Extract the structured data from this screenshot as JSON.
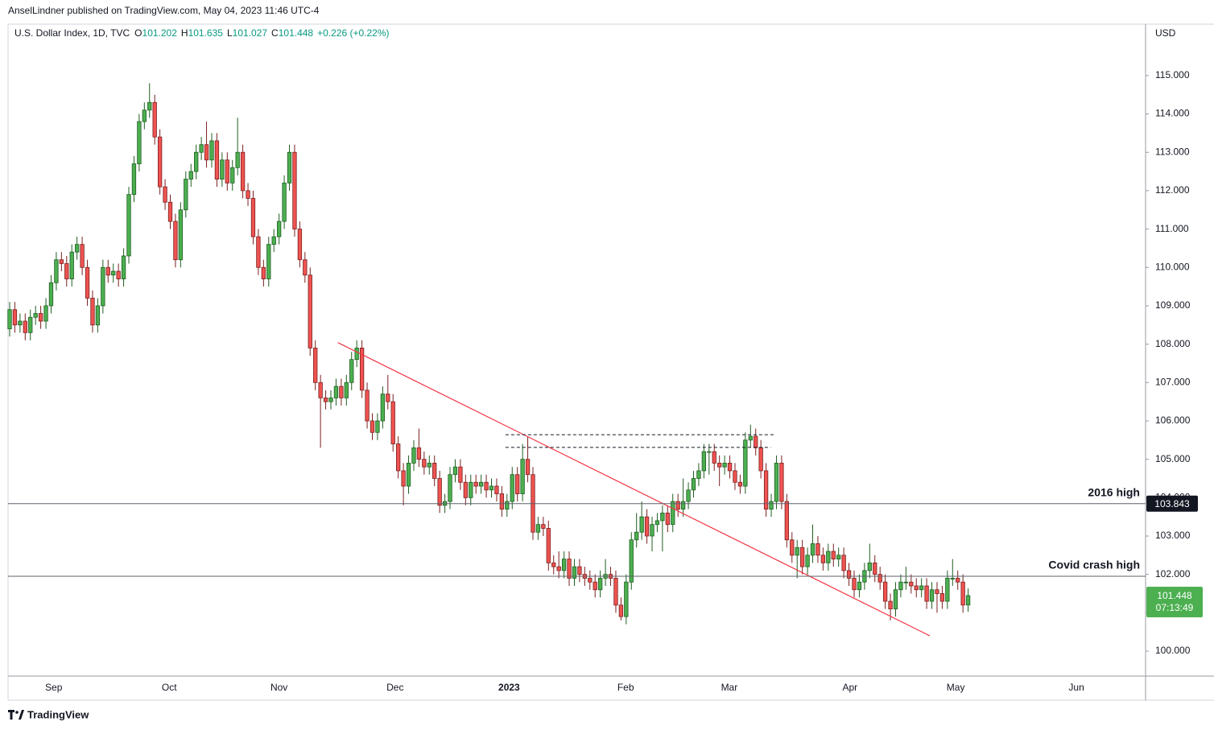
{
  "publisher": "AnselLindner published on TradingView.com, May 04, 2023 11:46 UTC-4",
  "brand": "TradingView",
  "chart_data": {
    "type": "candlestick",
    "legend": {
      "symbol": "U.S. Dollar Index, 1D, TVC",
      "fields": [
        {
          "key": "O",
          "value": "101.202"
        },
        {
          "key": "H",
          "value": "101.635"
        },
        {
          "key": "L",
          "value": "101.027"
        },
        {
          "key": "C",
          "value": "101.448"
        }
      ],
      "change": "+0.226 (+0.22%)"
    },
    "currency": "USD",
    "up_color": "#4caf50",
    "down_color": "#ef5350",
    "open": [
      108.4,
      108.9,
      108.5,
      108.6,
      108.3,
      108.7,
      108.8,
      108.6,
      109.0,
      109.6,
      110.2,
      110.1,
      109.7,
      110.4,
      110.6,
      110.0,
      109.2,
      108.5,
      109.0,
      110.0,
      109.8,
      109.9,
      109.7,
      110.3,
      111.9,
      112.7,
      113.8,
      114.1,
      114.3,
      113.4,
      112.1,
      111.7,
      111.2,
      110.2,
      111.5,
      112.3,
      112.5,
      113.0,
      113.2,
      112.8,
      113.3,
      112.3,
      112.8,
      112.2,
      112.6,
      113.0,
      112.0,
      111.8,
      110.8,
      110.0,
      109.7,
      110.6,
      110.8,
      111.2,
      112.2,
      113.0,
      111.0,
      110.2,
      109.8,
      107.9,
      107.0,
      106.6,
      106.5,
      106.6,
      106.9,
      106.6,
      107.0,
      107.6,
      107.9,
      106.8,
      106.0,
      105.7,
      106.0,
      106.7,
      106.5,
      105.4,
      104.7,
      104.3,
      104.9,
      105.3,
      105.0,
      104.8,
      104.9,
      104.5,
      103.8,
      103.9,
      104.6,
      104.8,
      104.4,
      104.0,
      104.4,
      104.3,
      104.4,
      104.2,
      104.3,
      104.1,
      103.7,
      103.9,
      104.6,
      104.1,
      105.0,
      104.6,
      103.1,
      103.3,
      103.2,
      102.3,
      102.2,
      102.1,
      102.4,
      101.9,
      102.2,
      102.0,
      101.9,
      101.8,
      101.6,
      101.9,
      102.0,
      101.9,
      101.2,
      100.9,
      101.8,
      102.9,
      103.1,
      103.5,
      103.0,
      103.3,
      103.4,
      103.6,
      103.3,
      103.9,
      103.7,
      103.9,
      104.2,
      104.5,
      104.7,
      105.2,
      105.2,
      104.9,
      104.8,
      104.9,
      104.7,
      104.4,
      104.3,
      105.5,
      105.6,
      105.3,
      104.7,
      103.7,
      103.9,
      104.9,
      103.9,
      102.9,
      102.5,
      102.7,
      102.2,
      102.5,
      102.8,
      102.5,
      102.3,
      102.6,
      102.4,
      102.5,
      102.1,
      101.9,
      101.6,
      101.8,
      102.1,
      102.3,
      102.0,
      101.8,
      101.3,
      101.1,
      101.6,
      101.8,
      101.8,
      101.7,
      101.6,
      101.7,
      101.3,
      101.6,
      101.5,
      101.3,
      101.9,
      101.9,
      101.8,
      101.202
    ],
    "high": [
      109.1,
      109.1,
      108.8,
      108.8,
      108.9,
      109.0,
      109.0,
      109.2,
      109.8,
      110.4,
      110.4,
      110.3,
      110.6,
      110.8,
      110.8,
      110.2,
      109.4,
      109.2,
      110.2,
      110.2,
      110.1,
      110.1,
      110.5,
      112.1,
      112.9,
      114.0,
      114.3,
      114.8,
      114.5,
      113.6,
      112.3,
      111.9,
      111.4,
      111.7,
      112.5,
      112.7,
      113.2,
      113.4,
      113.8,
      113.5,
      113.5,
      113.0,
      113.0,
      112.8,
      113.9,
      113.2,
      112.2,
      112.0,
      111.0,
      110.2,
      110.8,
      111.0,
      111.4,
      112.4,
      113.2,
      113.2,
      111.2,
      110.4,
      110.0,
      108.1,
      107.2,
      106.8,
      106.8,
      107.1,
      107.1,
      107.2,
      107.8,
      108.1,
      108.1,
      107.0,
      106.2,
      106.2,
      106.9,
      107.2,
      106.7,
      105.6,
      104.9,
      105.1,
      105.5,
      105.8,
      105.2,
      105.1,
      105.1,
      104.7,
      104.1,
      104.8,
      105.0,
      105.0,
      104.6,
      104.6,
      104.6,
      104.6,
      104.6,
      104.5,
      104.5,
      104.3,
      104.1,
      104.8,
      104.8,
      105.4,
      105.6,
      104.8,
      103.5,
      103.5,
      103.4,
      102.5,
      102.6,
      102.6,
      102.6,
      102.4,
      102.4,
      102.2,
      102.1,
      102.0,
      102.1,
      102.4,
      102.2,
      102.1,
      101.4,
      102.0,
      103.1,
      103.6,
      103.9,
      103.7,
      103.5,
      103.6,
      103.8,
      103.8,
      104.1,
      104.1,
      104.5,
      104.4,
      104.7,
      104.9,
      105.4,
      105.4,
      105.4,
      105.1,
      105.1,
      105.1,
      104.9,
      104.6,
      105.7,
      105.9,
      105.8,
      105.5,
      104.9,
      104.1,
      105.1,
      105.1,
      104.1,
      103.1,
      102.9,
      102.9,
      102.7,
      103.3,
      103.0,
      102.7,
      102.8,
      102.8,
      102.7,
      102.7,
      102.3,
      102.1,
      102.0,
      102.3,
      102.8,
      102.5,
      102.2,
      102.0,
      101.5,
      101.8,
      102.0,
      102.2,
      102.0,
      101.9,
      101.9,
      101.9,
      101.8,
      101.8,
      101.7,
      102.1,
      102.4,
      102.1,
      102.0,
      101.635
    ],
    "low": [
      108.2,
      108.3,
      108.3,
      108.1,
      108.1,
      108.5,
      108.4,
      108.4,
      108.8,
      109.4,
      109.9,
      109.5,
      109.5,
      110.2,
      109.8,
      109.0,
      108.3,
      108.3,
      108.8,
      109.6,
      109.6,
      109.5,
      109.5,
      110.1,
      111.7,
      112.5,
      113.6,
      113.9,
      113.2,
      111.9,
      111.5,
      111.0,
      110.0,
      110.0,
      111.3,
      112.1,
      112.3,
      112.8,
      112.6,
      112.6,
      112.1,
      112.1,
      112.0,
      112.0,
      112.4,
      111.8,
      111.6,
      110.6,
      109.8,
      109.5,
      109.5,
      110.4,
      110.6,
      111.0,
      112.0,
      110.8,
      110.0,
      109.6,
      107.7,
      106.8,
      105.3,
      106.3,
      106.3,
      106.4,
      106.4,
      106.4,
      106.8,
      107.4,
      106.6,
      105.8,
      105.5,
      105.5,
      105.8,
      106.3,
      105.2,
      104.5,
      103.8,
      104.1,
      104.7,
      104.8,
      104.6,
      104.6,
      104.3,
      103.6,
      103.6,
      103.7,
      104.4,
      104.2,
      103.8,
      103.8,
      104.1,
      104.1,
      104.0,
      104.0,
      103.9,
      103.5,
      103.5,
      103.7,
      103.9,
      103.9,
      104.4,
      102.9,
      102.9,
      103.0,
      102.1,
      102.0,
      101.9,
      101.9,
      101.7,
      101.7,
      101.8,
      101.7,
      101.6,
      101.4,
      101.4,
      101.7,
      101.7,
      101.0,
      100.8,
      100.7,
      101.6,
      102.7,
      102.9,
      102.8,
      102.6,
      103.1,
      102.6,
      103.1,
      103.1,
      103.5,
      103.5,
      103.7,
      104.0,
      104.3,
      104.5,
      104.6,
      104.7,
      104.3,
      104.6,
      104.5,
      104.2,
      104.1,
      104.1,
      105.3,
      105.1,
      104.5,
      103.5,
      103.5,
      103.7,
      103.7,
      102.7,
      102.3,
      101.9,
      102.0,
      102.0,
      102.3,
      102.3,
      102.1,
      102.1,
      102.2,
      102.2,
      101.9,
      101.7,
      101.4,
      101.4,
      101.6,
      101.9,
      101.8,
      101.6,
      101.1,
      100.8,
      100.9,
      101.4,
      101.6,
      101.5,
      101.4,
      101.4,
      101.1,
      101.1,
      101.0,
      101.1,
      101.1,
      101.7,
      101.6,
      101.0,
      101.027
    ],
    "close": [
      108.9,
      108.5,
      108.6,
      108.3,
      108.7,
      108.8,
      108.6,
      109.0,
      109.6,
      110.2,
      110.1,
      109.7,
      110.4,
      110.6,
      110.0,
      109.2,
      108.5,
      109.0,
      110.0,
      109.8,
      109.9,
      109.7,
      110.3,
      111.9,
      112.7,
      113.8,
      114.1,
      114.3,
      113.4,
      112.1,
      111.7,
      111.2,
      110.2,
      111.5,
      112.3,
      112.5,
      113.0,
      113.2,
      112.8,
      113.3,
      112.3,
      112.8,
      112.2,
      112.6,
      113.0,
      112.0,
      111.8,
      110.8,
      110.0,
      109.7,
      110.6,
      110.8,
      111.2,
      112.2,
      113.0,
      111.0,
      110.2,
      109.8,
      107.9,
      107.0,
      106.6,
      106.5,
      106.6,
      106.9,
      106.6,
      107.0,
      107.6,
      107.9,
      106.8,
      106.0,
      105.7,
      106.0,
      106.7,
      106.5,
      105.4,
      104.7,
      104.3,
      104.9,
      105.3,
      105.0,
      104.8,
      104.9,
      104.5,
      103.8,
      103.9,
      104.6,
      104.8,
      104.4,
      104.0,
      104.4,
      104.3,
      104.4,
      104.2,
      104.3,
      104.1,
      103.7,
      103.9,
      104.6,
      104.1,
      105.0,
      104.6,
      103.1,
      103.3,
      103.2,
      102.3,
      102.2,
      102.1,
      102.4,
      101.9,
      102.2,
      102.0,
      101.9,
      101.8,
      101.6,
      101.9,
      102.0,
      101.9,
      101.2,
      100.9,
      101.8,
      102.9,
      103.1,
      103.5,
      103.0,
      103.3,
      103.4,
      103.6,
      103.3,
      103.9,
      103.7,
      103.9,
      104.2,
      104.5,
      104.7,
      105.2,
      105.2,
      104.9,
      104.8,
      104.9,
      104.7,
      104.4,
      104.3,
      105.5,
      105.6,
      105.3,
      104.7,
      103.7,
      103.9,
      104.9,
      103.9,
      102.9,
      102.5,
      102.7,
      102.2,
      102.5,
      102.8,
      102.5,
      102.3,
      102.6,
      102.4,
      102.5,
      102.1,
      101.9,
      101.6,
      101.8,
      102.1,
      102.3,
      102.0,
      101.8,
      101.3,
      101.1,
      101.6,
      101.8,
      101.8,
      101.7,
      101.6,
      101.7,
      101.3,
      101.6,
      101.5,
      101.3,
      101.9,
      101.9,
      101.8,
      101.2,
      101.448
    ],
    "countdown": "07:13:49",
    "xlim": [
      -0.31,
      219.25
    ],
    "xticks": [
      {
        "value": 8.5,
        "label": "Sep"
      },
      {
        "value": 30.8,
        "label": "Oct"
      },
      {
        "value": 52.0,
        "label": "Nov"
      },
      {
        "value": 74.4,
        "label": "Dec"
      },
      {
        "value": 96.4,
        "label": "2023",
        "bold": true
      },
      {
        "value": 118.9,
        "label": "Feb"
      },
      {
        "value": 138.9,
        "label": "Mar"
      },
      {
        "value": 162.2,
        "label": "Apr"
      },
      {
        "value": 182.6,
        "label": "May"
      },
      {
        "value": 205.9,
        "label": "Jun"
      }
    ],
    "ylim": [
      99.35,
      116.34
    ],
    "yticks": [
      {
        "value": 100,
        "label": "100.000"
      },
      {
        "value": 101,
        "label": "101.000"
      },
      {
        "value": 102,
        "label": "102.000"
      },
      {
        "value": 103,
        "label": "103.000"
      },
      {
        "value": 104,
        "label": "104.000"
      },
      {
        "value": 105,
        "label": "105.000"
      },
      {
        "value": 106,
        "label": "106.000"
      },
      {
        "value": 107,
        "label": "107.000"
      },
      {
        "value": 108,
        "label": "108.000"
      },
      {
        "value": 109,
        "label": "109.000"
      },
      {
        "value": 110,
        "label": "110.000"
      },
      {
        "value": 111,
        "label": "111.000"
      },
      {
        "value": 112,
        "label": "112.000"
      },
      {
        "value": 113,
        "label": "113.000"
      },
      {
        "value": 114,
        "label": "114.000"
      },
      {
        "value": 115,
        "label": "115.000"
      }
    ],
    "levels": [
      {
        "label": "2016 high",
        "value": 103.843,
        "badge": true
      },
      {
        "label": "Covid crash high",
        "value": 101.95,
        "badge": false
      }
    ],
    "trendline": {
      "x": [
        63.35,
        177.6
      ],
      "y": [
        108.04,
        100.4
      ],
      "color": "#f23645"
    },
    "dashed_levels": [
      {
        "x": [
          95.7,
          147.7
        ],
        "y": 105.64
      },
      {
        "x": [
          95.7,
          146.9
        ],
        "y": 105.31
      }
    ]
  }
}
